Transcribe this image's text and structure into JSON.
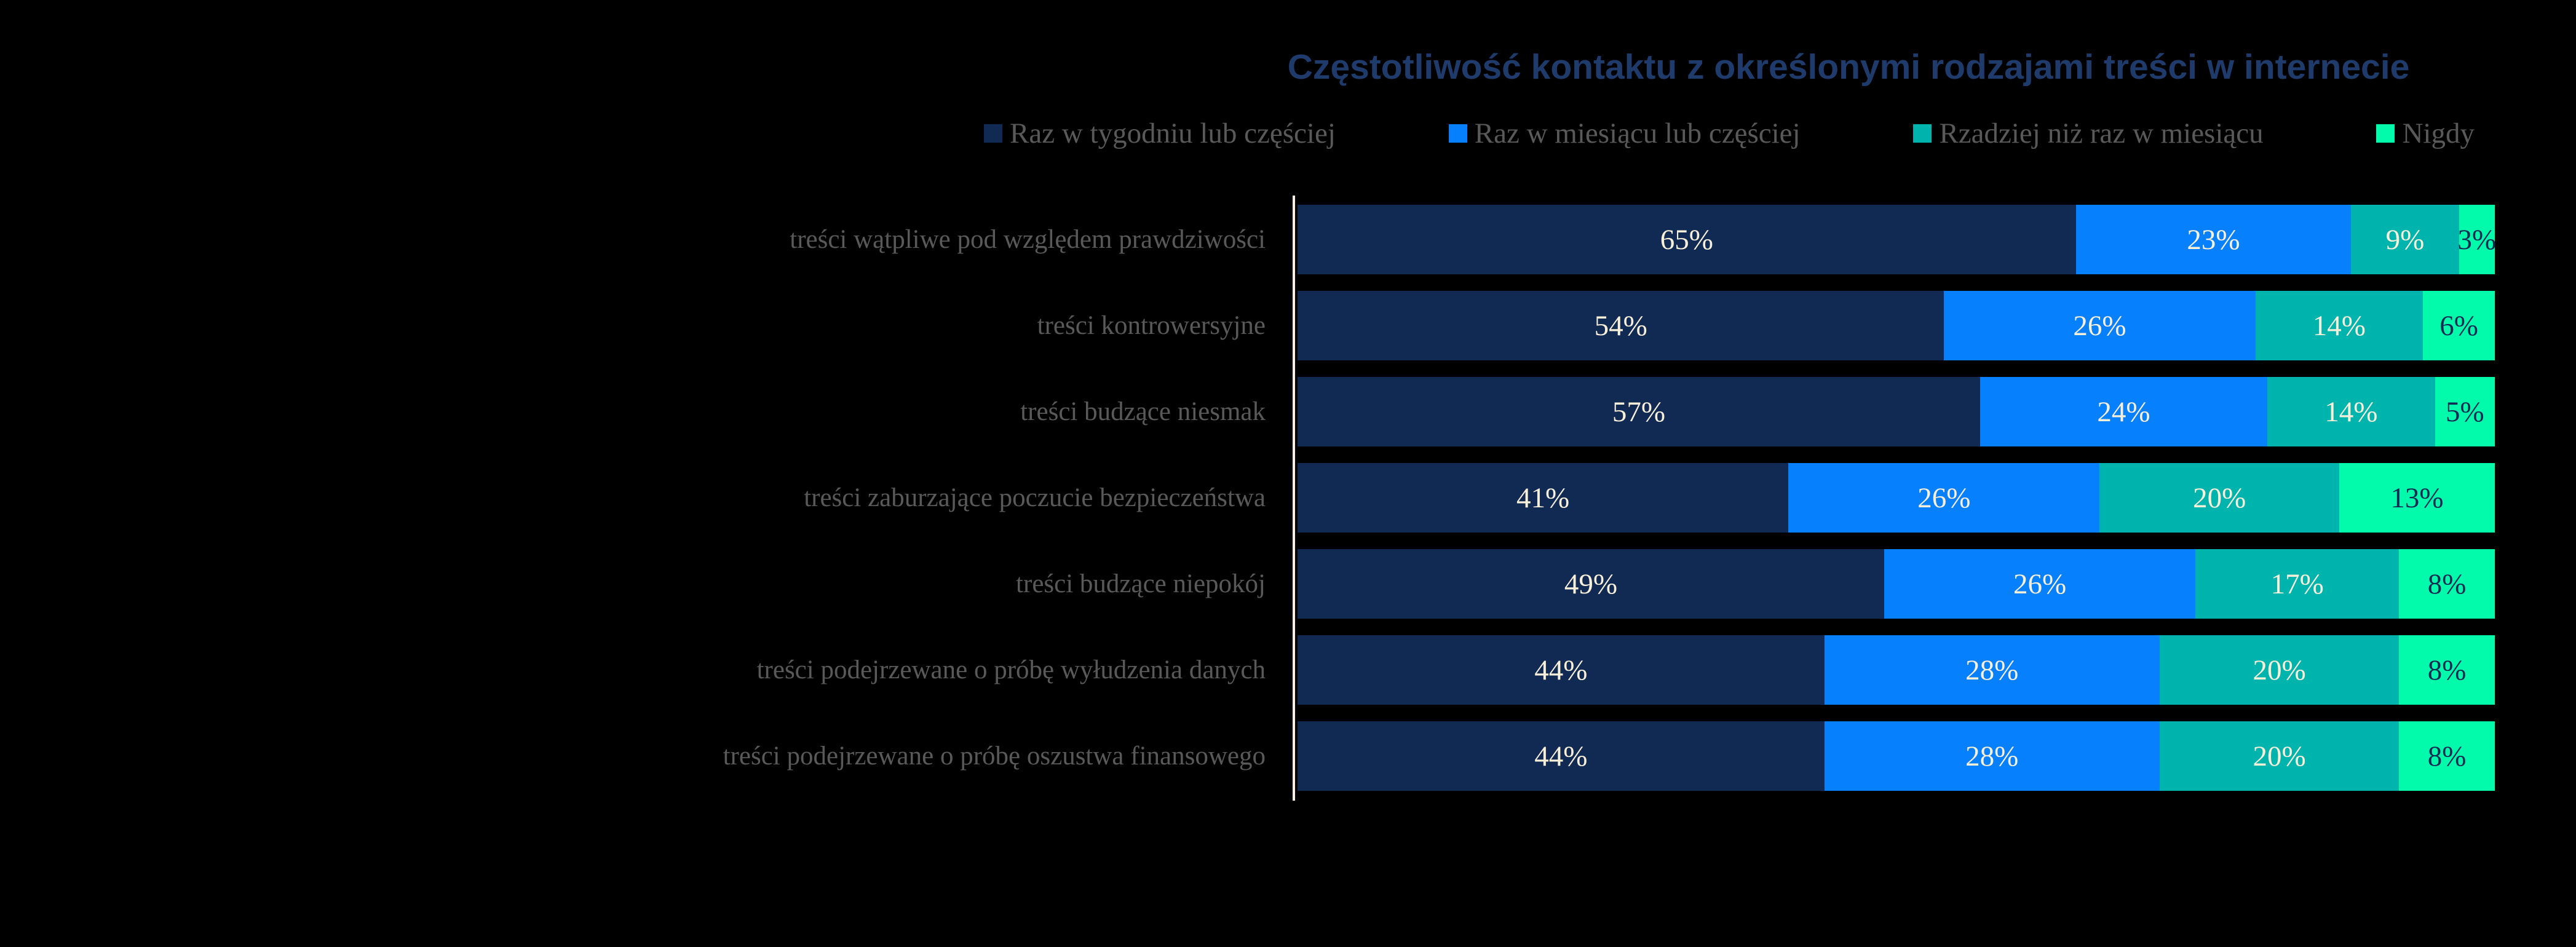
{
  "colors": {
    "background": "#000000",
    "title_text": "#1F3B6C",
    "label_text": "#595959",
    "axis_line": "#FAEFE3",
    "value_label_light": "#F8EFD9",
    "value_label_dark": "#102A53"
  },
  "chart_data": {
    "type": "bar",
    "orientation": "horizontal",
    "stacked": true,
    "value_unit": "%",
    "title": "Częstotliwość kontaktu z określonymi rodzajami treści w internecie",
    "legend_position": "top",
    "xlim": [
      0,
      100
    ],
    "grid": false,
    "categories": [
      "treści wątpliwe pod względem prawdziwości",
      "treści kontrowersyjne",
      "treści budzące niesmak",
      "treści zaburzające poczucie bezpieczeństwa",
      "treści budzące niepokój",
      "treści podejrzewane o próbę wyłudzenia danych",
      "treści podejrzewane o próbę oszustwa finansowego"
    ],
    "series": [
      {
        "name": "Raz w tygodniu lub częściej",
        "color": "#102A53",
        "values": [
          65,
          54,
          57,
          41,
          49,
          44,
          44
        ]
      },
      {
        "name": "Raz w miesiącu lub częściej",
        "color": "#0680FC",
        "values": [
          23,
          26,
          24,
          26,
          26,
          28,
          28
        ]
      },
      {
        "name": "Rzadziej niż raz w miesiącu",
        "color": "#00B4AE",
        "values": [
          9,
          14,
          14,
          20,
          17,
          20,
          20
        ]
      },
      {
        "name": "Nigdy",
        "color": "#02FBAB",
        "values": [
          3,
          6,
          5,
          13,
          8,
          8,
          8
        ]
      }
    ]
  }
}
